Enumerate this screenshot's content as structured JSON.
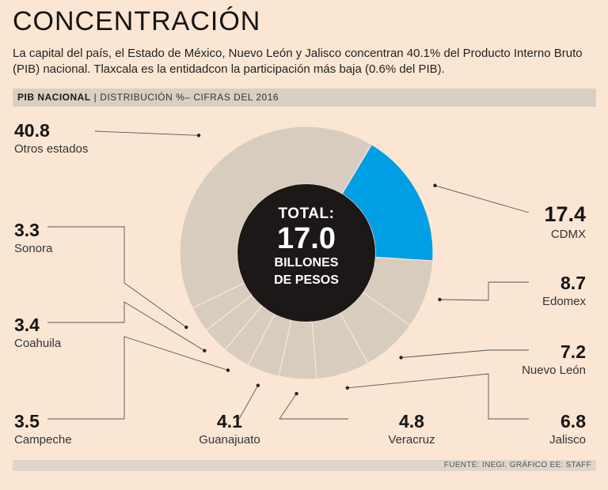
{
  "header": {
    "title": "CONCENTRACIÓN",
    "subtitle": "La capital del país, el Estado de México, Nuevo León y Jalisco concentran 40.1% del Producto Interno Bruto (PIB) nacional. Tlaxcala es la entidadcon la participación más baja (0.6% del PIB)."
  },
  "bar": {
    "label_bold": "PIB NACIONAL",
    "separator": "|",
    "label": "DISTRIBUCIÓN %– CIFRAS DEL 2016"
  },
  "center": {
    "line1": "TOTAL:",
    "line2": "17.0",
    "line3": "BILLONES",
    "line4": "DE PESOS"
  },
  "footer": {
    "source": "FUENTE: INEGI. GRÁFICO EE: STAFF"
  },
  "colors": {
    "background": "#fbe6d4",
    "segment": "#d8ccbe",
    "highlight": "#009fe3",
    "center": "#1c1818"
  },
  "chart_data": {
    "type": "pie",
    "title": "PIB NACIONAL",
    "subtitle": "DISTRIBUCIÓN %– CIFRAS DEL 2016",
    "unit": "%",
    "total_label": "17.0 billones de pesos",
    "slices": [
      {
        "label": "CDMX",
        "value": 17.4,
        "display": "17.4",
        "highlight": true
      },
      {
        "label": "Edomex",
        "value": 8.7,
        "display": "8.7"
      },
      {
        "label": "Nuevo León",
        "value": 7.2,
        "display": "7.2"
      },
      {
        "label": "Jalisco",
        "value": 6.8,
        "display": "6.8"
      },
      {
        "label": "Veracruz",
        "value": 4.8,
        "display": "4.8"
      },
      {
        "label": "Guanajuato",
        "value": 4.1,
        "display": "4.1"
      },
      {
        "label": "Campeche",
        "value": 3.5,
        "display": "3.5"
      },
      {
        "label": "Coahuila",
        "value": 3.4,
        "display": "3.4"
      },
      {
        "label": "Sonora",
        "value": 3.3,
        "display": "3.3"
      },
      {
        "label": "Otros estados",
        "value": 40.8,
        "display": "40.8"
      }
    ]
  }
}
